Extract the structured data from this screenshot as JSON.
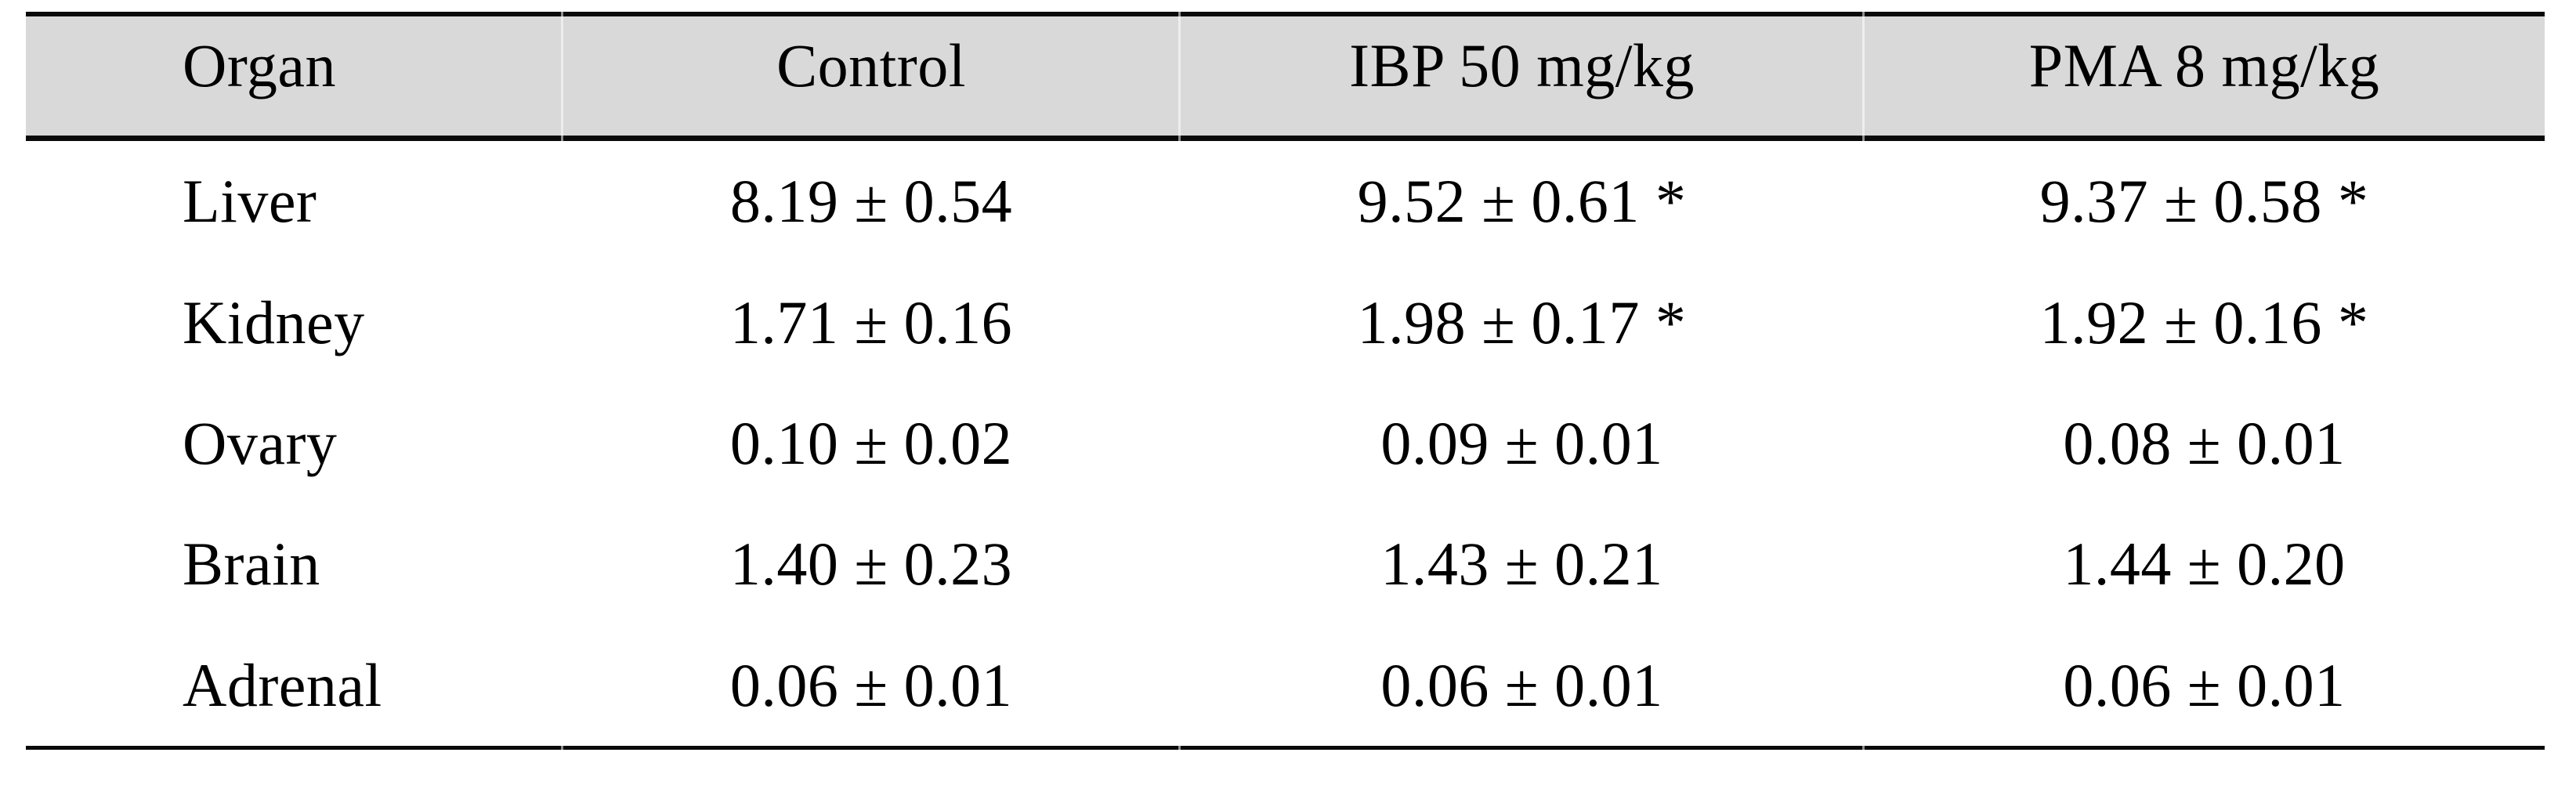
{
  "table": {
    "columns": [
      "Organ",
      "Control",
      "IBP 50 mg/kg",
      "PMA 8 mg/kg"
    ],
    "rows": [
      {
        "organ": "Liver",
        "values": [
          "8.19 ± 0.54",
          "9.52 ± 0.61 *",
          "9.37 ± 0.58 *"
        ]
      },
      {
        "organ": "Kidney",
        "values": [
          "1.71 ± 0.16",
          "1.98 ± 0.17 *",
          "1.92 ± 0.16 *"
        ]
      },
      {
        "organ": "Ovary",
        "values": [
          "0.10 ± 0.02",
          "0.09 ± 0.01",
          "0.08 ± 0.01"
        ]
      },
      {
        "organ": "Brain",
        "values": [
          "1.40 ± 0.23",
          "1.43 ± 0.21",
          "1.44 ± 0.20"
        ]
      },
      {
        "organ": "Adrenal",
        "values": [
          "0.06 ± 0.01",
          "0.06 ± 0.01",
          "0.06 ± 0.01"
        ]
      }
    ],
    "colors": {
      "header_bg": "#d9d9d9",
      "rule": "#0a0a0a",
      "text": "#000000"
    }
  }
}
